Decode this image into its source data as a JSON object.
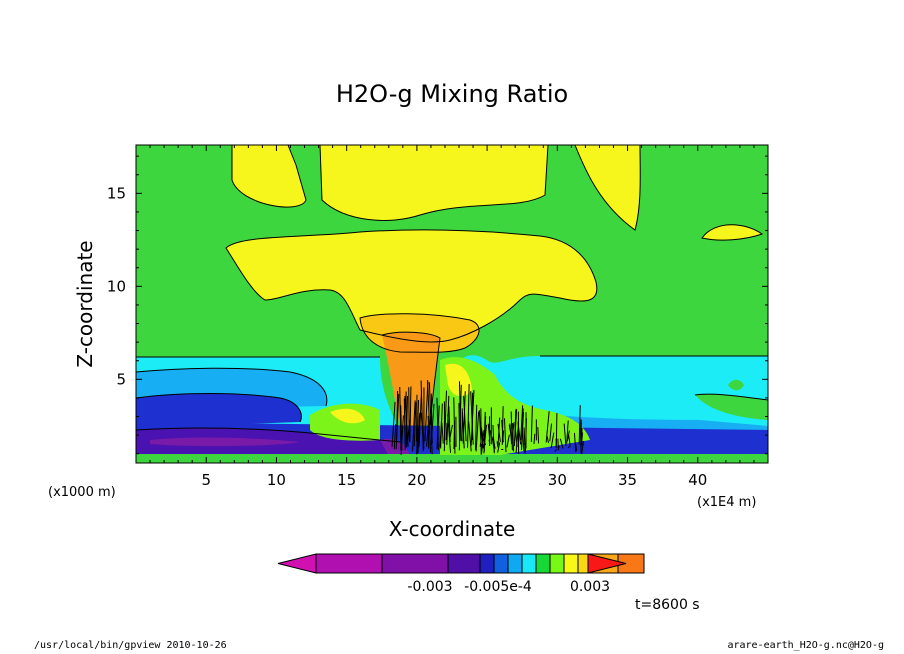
{
  "chart_data": {
    "type": "heatmap",
    "title": "H2O-g Mixing Ratio",
    "xlabel": "X-coordinate",
    "ylabel": "Z-coordinate",
    "x_unit": "(x1E4 m)",
    "y_unit": "(x1000 m)",
    "xlim": [
      0,
      45
    ],
    "ylim": [
      0.5,
      17.6
    ],
    "x_ticks": [
      5,
      10,
      15,
      20,
      25,
      30,
      35,
      40
    ],
    "y_ticks": [
      5,
      10,
      15
    ],
    "colorbar": {
      "colors": [
        "#d010b0",
        "#b010b0",
        "#8010a8",
        "#5010a8",
        "#2020c0",
        "#1060e0",
        "#10a8f0",
        "#18e8f8",
        "#18d838",
        "#78f818",
        "#f8f818",
        "#f8d810",
        "#f8a818",
        "#f87818",
        "#f81818"
      ],
      "tick_labels": [
        "-0.003",
        "-0.005e-4",
        "0.003"
      ]
    },
    "time_label": "t=8600 s",
    "colors": {
      "green": "#3ed63e",
      "light_green": "#7cf41a",
      "yellow": "#f6f61c",
      "gold": "#f8c814",
      "orange": "#f89a18",
      "cyan": "#1cecf6",
      "sky": "#18aef4",
      "blue": "#1e30d0",
      "indigo": "#4a12b0",
      "violet": "#7a1aa8"
    }
  },
  "footer": {
    "left": "/usr/local/bin/gpview  2010-10-26",
    "right": "arare-earth_H2O-g.nc@H2O-g"
  }
}
